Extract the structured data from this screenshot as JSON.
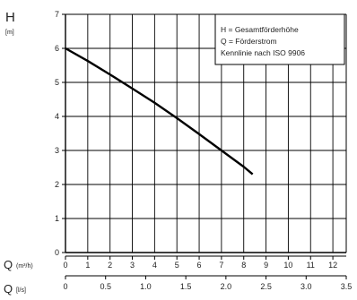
{
  "chart_data": {
    "type": "line",
    "ylabel": "H",
    "yunit": "[m]",
    "xlabel_primary": "Q",
    "xunit_primary": "(m³/h)",
    "xlabel_secondary": "Q",
    "xunit_secondary": "[l/s]",
    "xlim": [
      0,
      12.6
    ],
    "ylim": [
      0,
      7
    ],
    "yticks": [
      0,
      1,
      2,
      3,
      4,
      5,
      6,
      7
    ],
    "xticks_primary": [
      0,
      1,
      2,
      3,
      4,
      5,
      6,
      7,
      8,
      9,
      10,
      11,
      12
    ],
    "xticks_secondary": [
      "0",
      "0.5",
      "1.0",
      "1.5",
      "2.0",
      "2.5",
      "3.0",
      "3.5"
    ],
    "secondary_axis_factor": 3.6,
    "grid": true,
    "series": [
      {
        "x": [
          0,
          1,
          2,
          3,
          4,
          5,
          6,
          7,
          8,
          8.4
        ],
        "y": [
          6.0,
          5.63,
          5.23,
          4.82,
          4.4,
          3.95,
          3.48,
          3.0,
          2.52,
          2.3
        ]
      }
    ],
    "legend": {
      "position": "top-right",
      "lines": [
        "H = Gesamtförderhöhe",
        "Q = Förderstrom",
        "Kennlinie nach ISO 9906"
      ]
    }
  }
}
